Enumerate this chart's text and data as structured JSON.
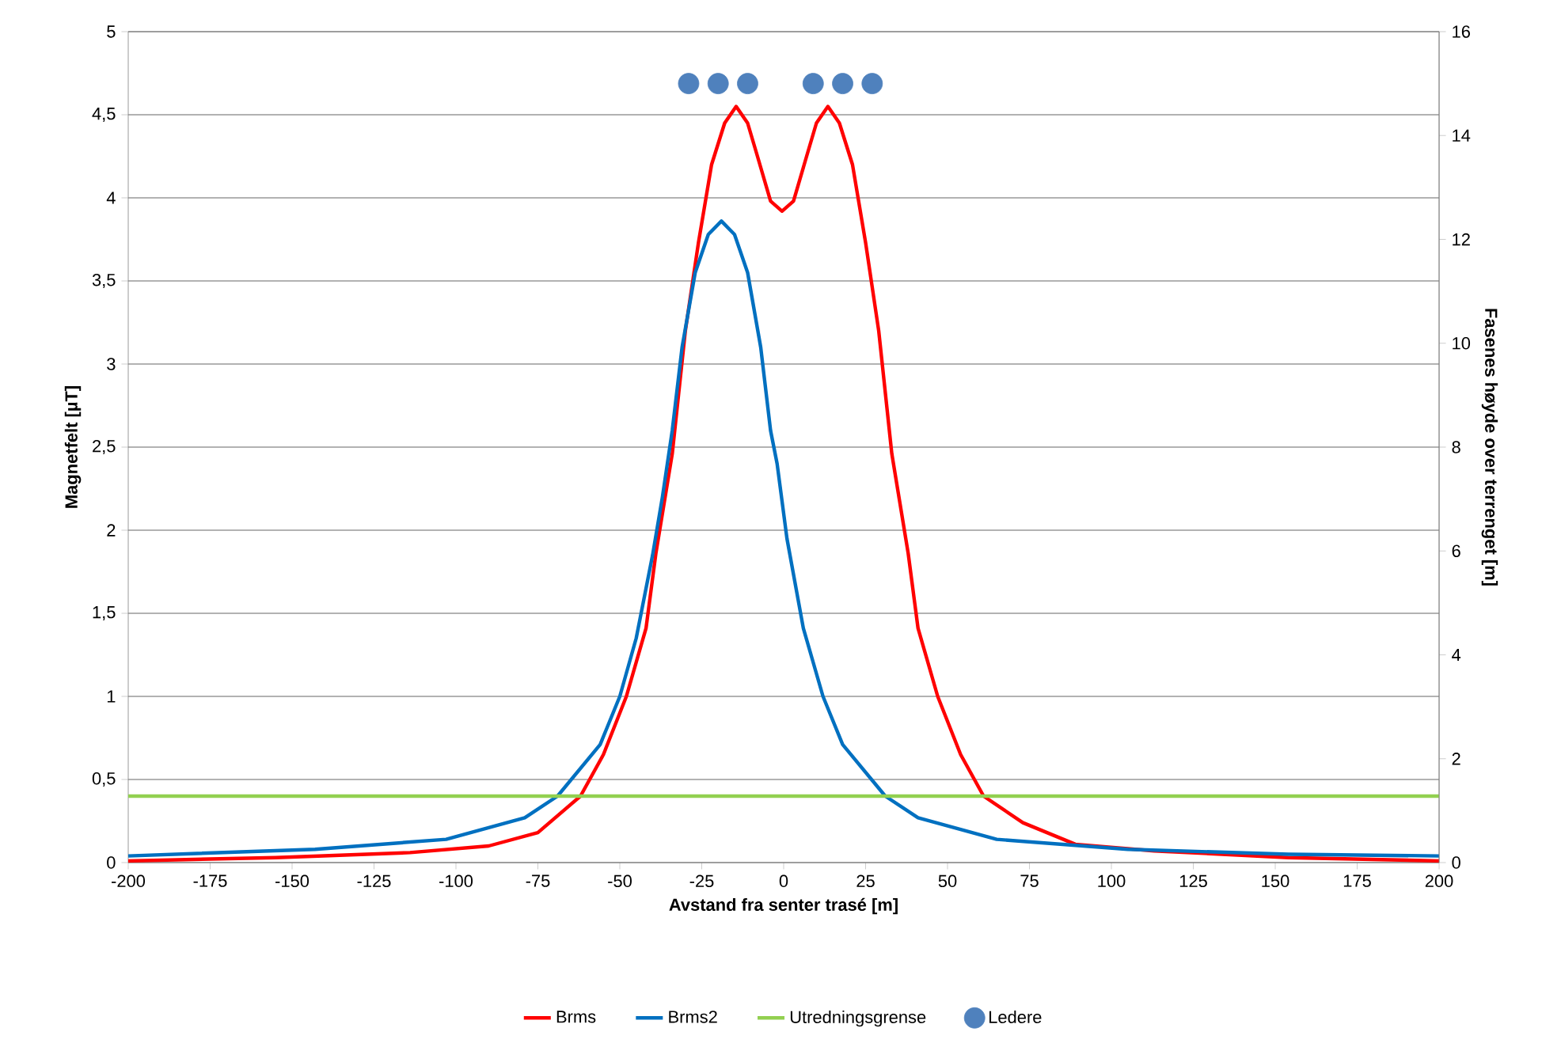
{
  "chart_data": {
    "type": "line",
    "xlabel": "Avstand fra senter trasé [m]",
    "ylabel": "Magnetfelt [µT]",
    "y2label": "Fasenes høyde over terrenget [m]",
    "xlim": [
      -200,
      200
    ],
    "xticks": [
      -200,
      -175,
      -150,
      -125,
      -100,
      -75,
      -50,
      -25,
      0,
      25,
      50,
      75,
      100,
      125,
      150,
      175,
      200
    ],
    "ylim": [
      0,
      5
    ],
    "yticks": [
      0,
      {
        "value": 0.5,
        "label": "0,5"
      },
      1,
      {
        "value": 1.5,
        "label": "1,5"
      },
      2,
      {
        "value": 2.5,
        "label": "2,5"
      },
      3,
      {
        "value": 3.5,
        "label": "3,5"
      },
      4,
      {
        "value": 4.5,
        "label": "4,5"
      },
      5
    ],
    "y2lim": [
      0,
      16
    ],
    "y2ticks": [
      0,
      2,
      4,
      6,
      8,
      10,
      12,
      14,
      16
    ],
    "grid": "y",
    "legend": "bottom",
    "series": [
      {
        "name": "Brms",
        "color": "#ff0000",
        "x": [
          -200,
          -155,
          -114,
          -90,
          -75,
          -62,
          -55,
          -48,
          -42,
          -39,
          -34,
          -30,
          -26,
          -22,
          -18,
          -14.5,
          -11,
          -8,
          -4,
          -0.5,
          3,
          7,
          10,
          13.5,
          17,
          21,
          25,
          29,
          33,
          38,
          41,
          47,
          54,
          61,
          73,
          89,
          113,
          154,
          200
        ],
        "values": [
          0.01,
          0.03,
          0.06,
          0.1,
          0.18,
          0.4,
          0.65,
          1.0,
          1.41,
          1.86,
          2.46,
          3.2,
          3.73,
          4.2,
          4.45,
          4.55,
          4.45,
          4.25,
          3.98,
          3.92,
          3.98,
          4.25,
          4.45,
          4.55,
          4.45,
          4.2,
          3.73,
          3.2,
          2.46,
          1.86,
          1.41,
          1.0,
          0.65,
          0.4,
          0.24,
          0.11,
          0.07,
          0.03,
          0.01
        ]
      },
      {
        "name": "Brms2",
        "color": "#0070c0",
        "x": [
          -200,
          -143,
          -103,
          -79,
          -69,
          -56,
          -50,
          -45,
          -40,
          -37,
          -34,
          -31,
          -27,
          -23,
          -19,
          -15,
          -11,
          -7,
          -4,
          -2,
          1,
          6,
          12,
          18,
          31,
          41,
          65,
          105,
          154,
          200
        ],
        "values": [
          0.04,
          0.08,
          0.14,
          0.27,
          0.4,
          0.71,
          1.0,
          1.35,
          1.85,
          2.2,
          2.6,
          3.1,
          3.55,
          3.78,
          3.86,
          3.78,
          3.55,
          3.1,
          2.6,
          2.4,
          1.95,
          1.41,
          1.0,
          0.71,
          0.4,
          0.27,
          0.14,
          0.08,
          0.05,
          0.04
        ]
      },
      {
        "name": "Utredningsgrense",
        "color": "#92d050",
        "x": [
          -200,
          200
        ],
        "values": [
          0.4,
          0.4
        ]
      },
      {
        "name": "Ledere",
        "type": "scatter",
        "axis": "y2",
        "color": "#4f81bd",
        "x": [
          -29,
          -20,
          -11,
          9,
          18,
          27
        ],
        "values": [
          15,
          15,
          15,
          15,
          15,
          15
        ]
      }
    ]
  }
}
